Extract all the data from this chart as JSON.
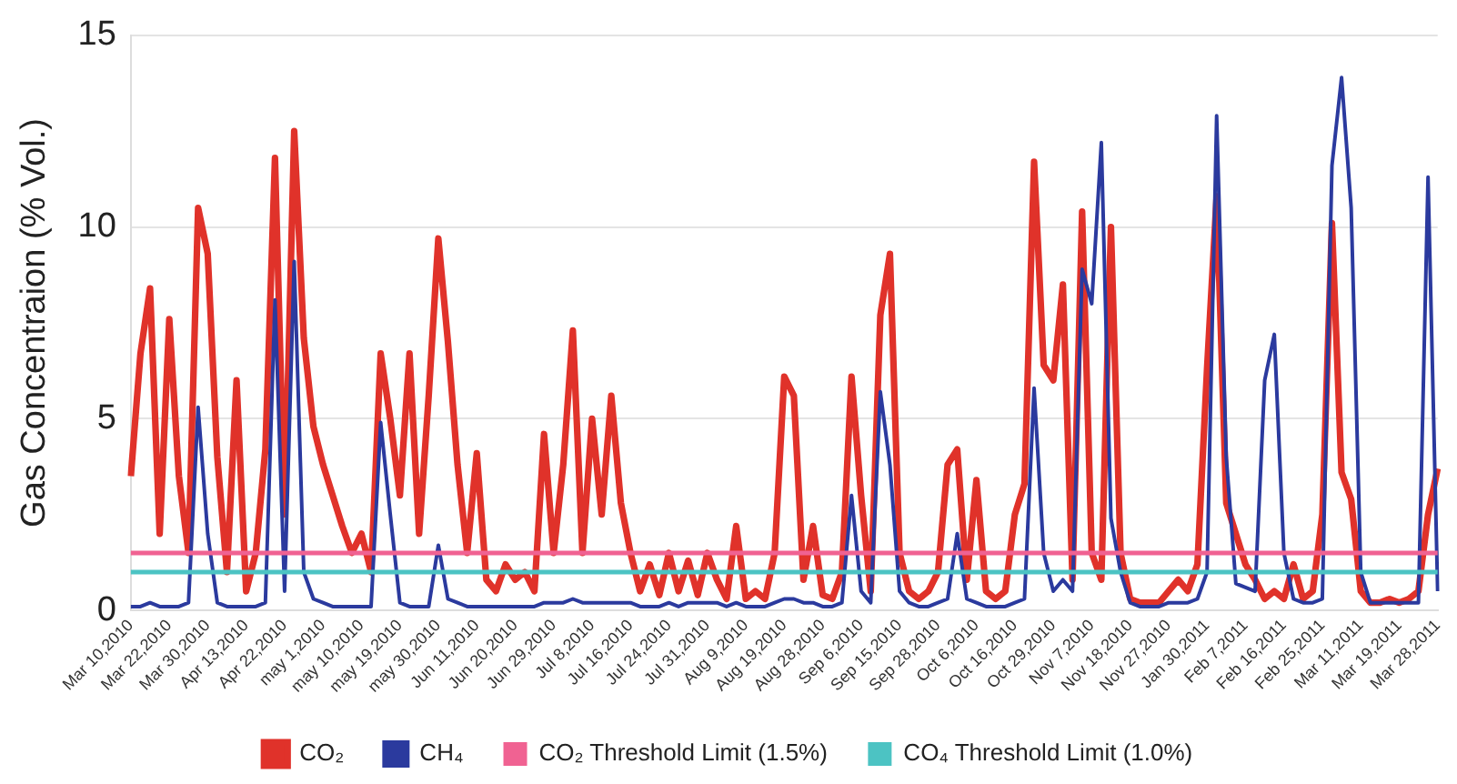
{
  "chart_data": {
    "type": "line",
    "ylabel": "Gas Concentraion (% Vol.)",
    "categories": [
      "Mar 10,2010",
      null,
      null,
      null,
      "Mar 22,2010",
      null,
      null,
      null,
      "Mar 30,2010",
      null,
      null,
      null,
      "Apr 13,2010",
      null,
      null,
      null,
      "Apr 22,2010",
      null,
      null,
      null,
      "may 1,2010",
      null,
      null,
      null,
      "may 10,2010",
      null,
      null,
      null,
      "may 19,2010",
      null,
      null,
      null,
      "may 30,2010",
      null,
      null,
      null,
      "Jun 11,2010",
      null,
      null,
      null,
      "Jun 20,2010",
      null,
      null,
      null,
      "Jun 29,2010",
      null,
      null,
      null,
      "Jul 8,2010",
      null,
      null,
      null,
      "Jul 16,2010",
      null,
      null,
      null,
      "Jul 24,2010",
      null,
      null,
      null,
      "Jul 31,2010",
      null,
      null,
      null,
      "Aug 9,2010",
      null,
      null,
      null,
      "Aug 19,2010",
      null,
      null,
      null,
      "Aug 28,2010",
      null,
      null,
      null,
      "Sep 6,2010",
      null,
      null,
      null,
      "Sep 15,2010",
      null,
      null,
      null,
      "Sep 28,2010",
      null,
      null,
      null,
      "Oct 6,2010",
      null,
      null,
      null,
      "Oct 16,2010",
      null,
      null,
      null,
      "Oct 29,2010",
      null,
      null,
      null,
      "Nov 7,2010",
      null,
      null,
      null,
      "Nov 18,2010",
      null,
      null,
      null,
      "Nov 27,2010",
      null,
      null,
      null,
      "Jan 30,2011",
      null,
      null,
      null,
      "Feb 7,2011",
      null,
      null,
      null,
      "Feb 16,2011",
      null,
      null,
      null,
      "Feb 25,2011",
      null,
      null,
      null,
      "Mar 11,2011",
      null,
      null,
      null,
      "Mar 19,2011",
      null,
      null,
      null,
      "Mar 28,2011"
    ],
    "series": [
      {
        "name": "CO₂",
        "color": "#e0322a",
        "values": [
          3.5,
          6.7,
          8.4,
          2,
          7.6,
          3.5,
          1.5,
          10.5,
          9.3,
          4,
          1,
          6,
          0.5,
          1.5,
          4.2,
          11.8,
          2.5,
          12.5,
          7.1,
          4.8,
          3.8,
          3,
          2.2,
          1.5,
          2,
          1,
          6.7,
          5,
          3,
          6.7,
          2,
          5.6,
          9.7,
          7,
          3.8,
          1.5,
          4.1,
          0.8,
          0.5,
          1.2,
          0.8,
          1,
          0.5,
          4.6,
          1.5,
          3.8,
          7.3,
          1.5,
          5,
          2.5,
          5.6,
          2.8,
          1.5,
          0.5,
          1.2,
          0.4,
          1.5,
          0.5,
          1.3,
          0.4,
          1.5,
          0.8,
          0.3,
          2.2,
          0.3,
          0.5,
          0.3,
          1.5,
          6.1,
          5.6,
          0.8,
          2.2,
          0.4,
          0.3,
          1,
          6.1,
          3,
          0.5,
          7.7,
          9.3,
          1.5,
          0.5,
          0.3,
          0.5,
          1,
          3.8,
          4.2,
          0.8,
          3.4,
          0.5,
          0.3,
          0.5,
          2.5,
          3.3,
          11.7,
          6.4,
          6,
          8.5,
          0.8,
          10.4,
          1.5,
          0.8,
          10,
          1.5,
          0.3,
          0.2,
          0.2,
          0.2,
          0.5,
          0.8,
          0.5,
          1.2,
          6.3,
          10.8,
          2.8,
          2,
          1.2,
          0.8,
          0.3,
          0.5,
          0.3,
          1.2,
          0.3,
          0.5,
          2.5,
          10.1,
          3.6,
          2.9,
          0.5,
          0.2,
          0.2,
          0.3,
          0.2,
          0.3,
          0.5,
          2.5,
          3.7
        ]
      },
      {
        "name": "CH₄",
        "color": "#2b3a9e",
        "values": [
          0.1,
          0.1,
          0.2,
          0.1,
          0.1,
          0.1,
          0.2,
          5.3,
          2,
          0.2,
          0.1,
          0.1,
          0.1,
          0.1,
          0.2,
          8.1,
          0.5,
          9.1,
          1,
          0.3,
          0.2,
          0.1,
          0.1,
          0.1,
          0.1,
          0.1,
          4.9,
          2.5,
          0.2,
          0.1,
          0.1,
          0.1,
          1.7,
          0.3,
          0.2,
          0.1,
          0.1,
          0.1,
          0.1,
          0.1,
          0.1,
          0.1,
          0.1,
          0.2,
          0.2,
          0.2,
          0.3,
          0.2,
          0.2,
          0.2,
          0.2,
          0.2,
          0.2,
          0.1,
          0.1,
          0.1,
          0.2,
          0.1,
          0.2,
          0.2,
          0.2,
          0.2,
          0.1,
          0.2,
          0.1,
          0.1,
          0.1,
          0.2,
          0.3,
          0.3,
          0.2,
          0.2,
          0.1,
          0.1,
          0.2,
          3,
          0.5,
          0.2,
          5.7,
          3.8,
          0.5,
          0.2,
          0.1,
          0.1,
          0.2,
          0.3,
          2,
          0.3,
          0.2,
          0.1,
          0.1,
          0.1,
          0.2,
          0.3,
          5.8,
          1.5,
          0.5,
          0.8,
          0.5,
          8.9,
          8,
          12.2,
          2.4,
          1,
          0.2,
          0.1,
          0.1,
          0.1,
          0.2,
          0.2,
          0.2,
          0.3,
          1,
          12.9,
          4,
          0.7,
          0.6,
          0.5,
          6,
          7.2,
          1.5,
          0.3,
          0.2,
          0.2,
          0.3,
          11.6,
          13.9,
          10.5,
          1,
          0.2,
          0.2,
          0.2,
          0.2,
          0.2,
          0.2,
          11.3,
          0.5
        ]
      }
    ],
    "ref_lines": [
      {
        "axis": "y",
        "value": 1.5,
        "label": "CO₂ Threshold Limit (1.5%)",
        "color": "#f06292"
      },
      {
        "axis": "y",
        "value": 1.0,
        "label": "CO₄ Threshold Limit (1.0%)",
        "color": "#4cc3c3"
      }
    ],
    "ylim": [
      0,
      15
    ],
    "yticks": [
      0,
      5,
      10,
      15
    ],
    "grid": "y",
    "legend": "bottom",
    "marker": "none",
    "line_style": "solid"
  }
}
